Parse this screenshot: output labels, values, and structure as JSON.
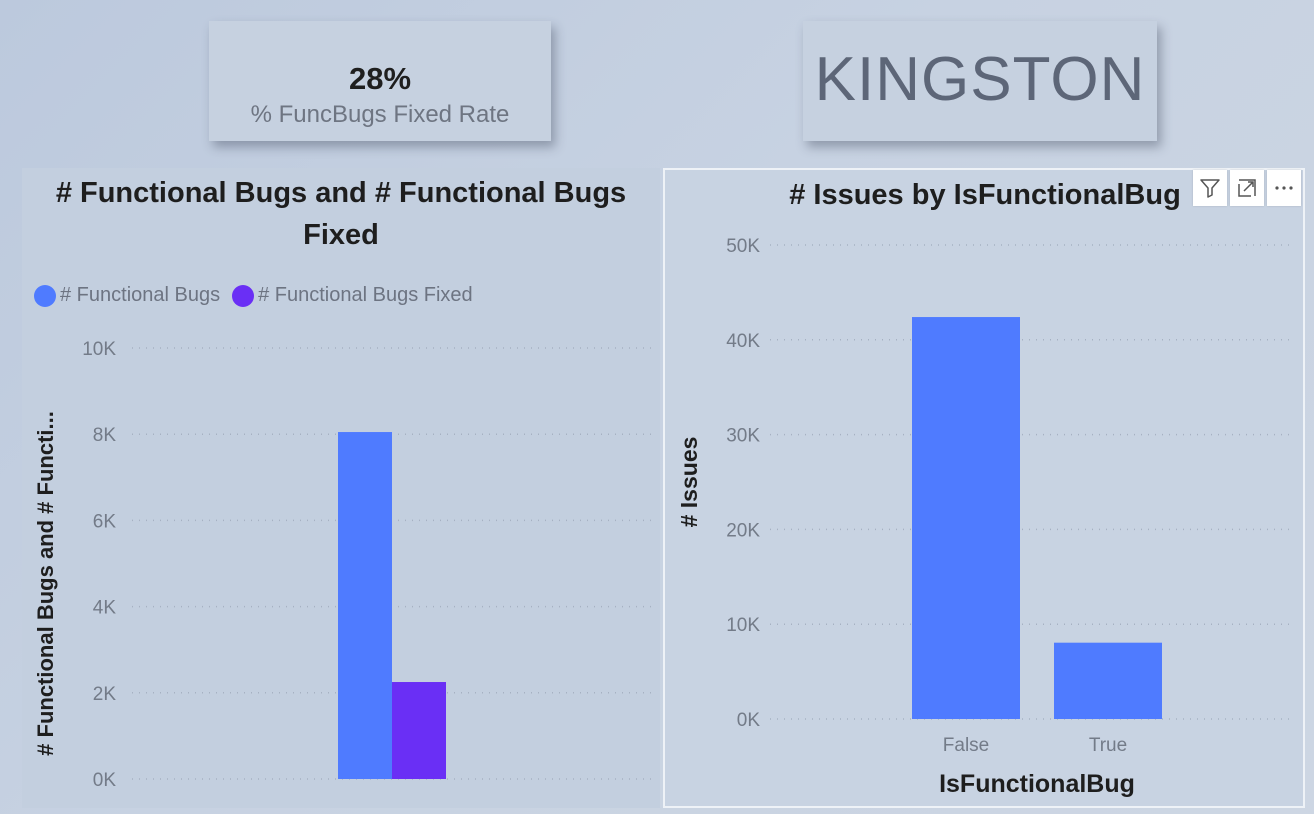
{
  "kpi": {
    "value": "28%",
    "label": "% FuncBugs Fixed Rate"
  },
  "city_card": {
    "text": "KINGSTON"
  },
  "left_visual": {
    "title": "# Functional Bugs and # Functional Bugs Fixed",
    "y_axis_title": "# Functional Bugs and # Functi...",
    "legend": [
      {
        "label": "# Functional Bugs",
        "color": "#4f7bff"
      },
      {
        "label": "# Functional Bugs Fixed",
        "color": "#6a2ff5"
      }
    ]
  },
  "right_visual": {
    "title": "# Issues by IsFunctionalBug",
    "y_axis_title": "# Issues",
    "x_axis_title": "IsFunctionalBug",
    "header_icons": [
      "filter-icon",
      "focus-mode-icon",
      "more-options-icon"
    ]
  },
  "chart_data": [
    {
      "type": "bar",
      "title": "# Functional Bugs and # Functional Bugs Fixed",
      "ylabel": "# Functional Bugs and # Functi...",
      "xlabel": "",
      "categories": [
        ""
      ],
      "series": [
        {
          "name": "# Functional Bugs",
          "values": [
            8050
          ],
          "color": "#4f7bff"
        },
        {
          "name": "# Functional Bugs Fixed",
          "values": [
            2250
          ],
          "color": "#6a2ff5"
        }
      ],
      "ylim": [
        0,
        10000
      ],
      "yticks": [
        "0K",
        "2K",
        "4K",
        "6K",
        "8K",
        "10K"
      ],
      "ytick_values": [
        0,
        2000,
        4000,
        6000,
        8000,
        10000
      ],
      "grid": true,
      "legend": "top-left"
    },
    {
      "type": "bar",
      "title": "# Issues by IsFunctionalBug",
      "ylabel": "# Issues",
      "xlabel": "IsFunctionalBug",
      "categories": [
        "False",
        "True"
      ],
      "values": [
        42400,
        8050
      ],
      "color": "#4f7bff",
      "ylim": [
        0,
        50000
      ],
      "yticks": [
        "0K",
        "10K",
        "20K",
        "30K",
        "40K",
        "50K"
      ],
      "ytick_values": [
        0,
        10000,
        20000,
        30000,
        40000,
        50000
      ],
      "grid": true
    }
  ]
}
